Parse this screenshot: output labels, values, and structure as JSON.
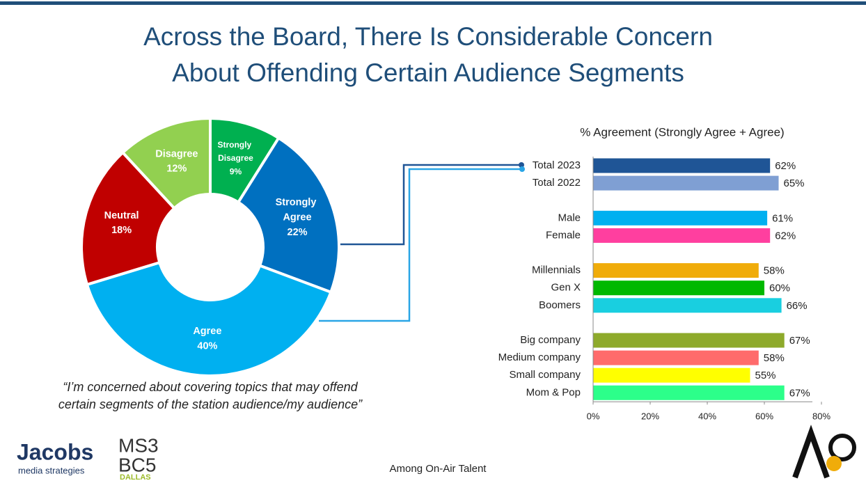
{
  "title": [
    "Across the Board, There Is Considerable Concern",
    "About Offending Certain Audience Segments"
  ],
  "quote": [
    "“I’m concerned about covering topics that may offend",
    "certain segments of the station audience/my audience”"
  ],
  "footer": "Among On-Air Talent",
  "logos": {
    "jacobs": "Jacobs",
    "jacobs_sub": "media strategies",
    "msbc": [
      "MS3",
      "BC5",
      "DALLAS"
    ]
  },
  "chart_data": [
    {
      "type": "pie",
      "categories": [
        "Strongly Disagree",
        "Strongly Agree",
        "Agree",
        "Neutral",
        "Disagree"
      ],
      "values": [
        9,
        22,
        40,
        18,
        12
      ],
      "value_labels": [
        "9%",
        "22%",
        "40%",
        "18%",
        "12%"
      ],
      "colors": [
        "#00b050",
        "#0070c0",
        "#00b0f0",
        "#c00000",
        "#92d050"
      ]
    },
    {
      "type": "barh",
      "title": "% Agreement (Strongly Agree + Agree)",
      "categories": [
        "Total 2023",
        "Total 2022",
        null,
        "Male",
        "Female",
        null,
        "Millennials",
        "Gen X",
        "Boomers",
        null,
        "Big company",
        "Medium company",
        "Small company",
        "Mom & Pop"
      ],
      "values": [
        62,
        65,
        null,
        61,
        62,
        null,
        58,
        60,
        66,
        null,
        67,
        58,
        55,
        67
      ],
      "value_labels": [
        "62%",
        "65%",
        null,
        "61%",
        "62%",
        null,
        "58%",
        "60%",
        "66%",
        null,
        "67%",
        "58%",
        "55%",
        "67%"
      ],
      "colors": [
        "#1f5596",
        "#7f9fd3",
        null,
        "#00b0f0",
        "#ff3f9f",
        null,
        "#f0ac0a",
        "#00b800",
        "#19cfe0",
        null,
        "#8eaa2b",
        "#ff6b6b",
        "#ffff00",
        "#2cff8a"
      ],
      "xlim": [
        0,
        80
      ],
      "xticks": [
        {
          "value": 0,
          "label": "0%"
        },
        {
          "value": 20,
          "label": "20%"
        },
        {
          "value": 40,
          "label": "40%"
        },
        {
          "value": 60,
          "label": "60%"
        },
        {
          "value": 80,
          "label": "80%"
        }
      ]
    }
  ]
}
